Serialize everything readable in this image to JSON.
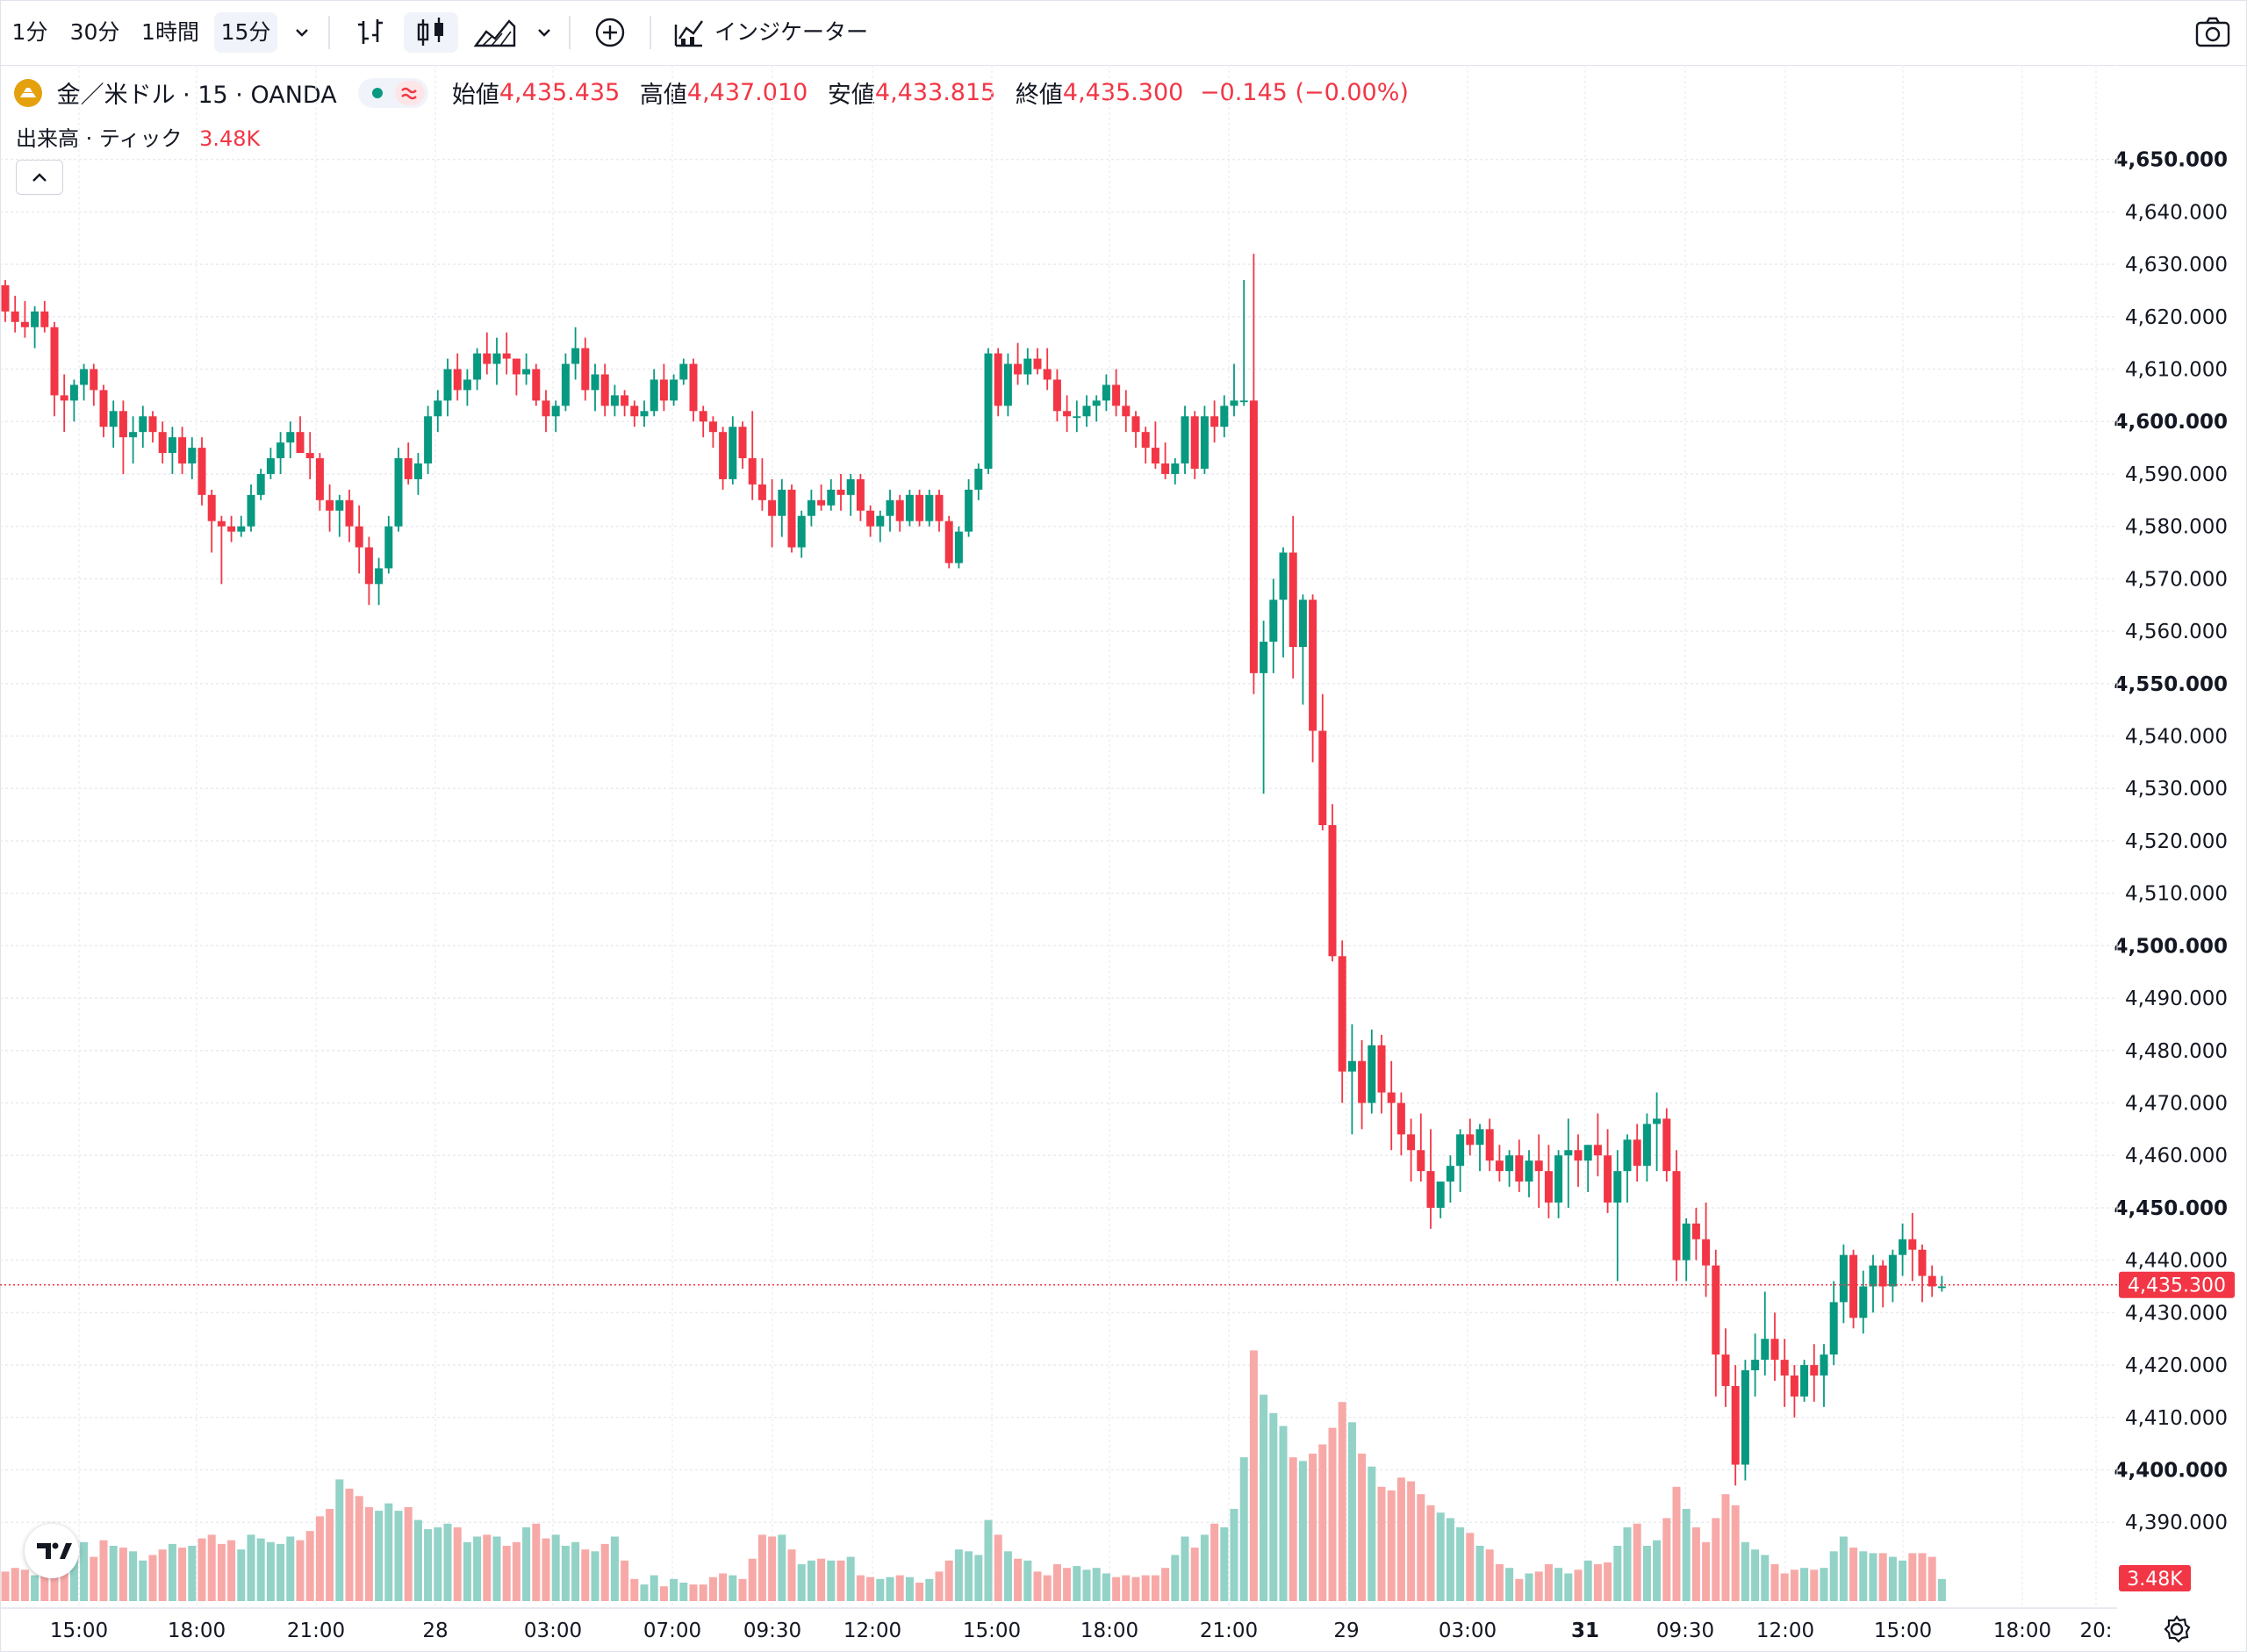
{
  "toolbar": {
    "intervals": [
      "1分",
      "30分",
      "1時間",
      "15分"
    ],
    "active_interval": "15分",
    "indicators_label": "インジケーター",
    "icons": [
      "chevron-down-icon",
      "bar-style-icon",
      "candles-icon",
      "area-icon",
      "chevron-down-icon",
      "plus-circle-icon",
      "indicators-icon",
      "camera-icon"
    ]
  },
  "legend": {
    "symbol": "金／米ドル · 15 · OANDA",
    "open_label": "始値",
    "open": "4,435.435",
    "high_label": "高値",
    "high": "4,437.010",
    "low_label": "安値",
    "low": "4,433.815",
    "close_label": "終値",
    "close": "4,435.300",
    "change": "−0.145 (−0.00%)"
  },
  "volume_legend": {
    "label": "出来高 · ティック",
    "value": "3.48K"
  },
  "price_tags": {
    "last_price": "4,435.300",
    "last_volume": "3.48K"
  },
  "colors": {
    "up": "#089981",
    "down": "#f23645",
    "vol_up": "#92d2c7",
    "vol_down": "#f7a9a7"
  },
  "chart_data": {
    "type": "candlestick",
    "symbol": "XAUUSD",
    "timeframe": "15",
    "ylim": [
      4382,
      4662
    ],
    "y_ticks": [
      4390,
      4400,
      4410,
      4420,
      4430,
      4440,
      4450,
      4460,
      4470,
      4480,
      4490,
      4500,
      4510,
      4520,
      4530,
      4540,
      4550,
      4560,
      4570,
      4580,
      4590,
      4600,
      4610,
      4620,
      4630,
      4640,
      4650
    ],
    "y_tick_labels": [
      "4,390.000",
      "4,400.000",
      "4,410.000",
      "4,420.000",
      "4,430.000",
      "4,440.000",
      "4,450.000",
      "4,460.000",
      "4,470.000",
      "4,480.000",
      "4,490.000",
      "4,500.000",
      "4,510.000",
      "4,520.000",
      "4,530.000",
      "4,540.000",
      "4,550.000",
      "4,560.000",
      "4,570.000",
      "4,580.000",
      "4,590.000",
      "4,600.000",
      "4,610.000",
      "4,620.000",
      "4,630.000",
      "4,640.000",
      "4,650.000"
    ],
    "y_bold_ticks": [
      4400,
      4450,
      4500,
      4550,
      4600,
      4650
    ],
    "x_ticks": [
      "15:00",
      "18:00",
      "21:00",
      "28",
      "03:00",
      "07:00",
      "09:30",
      "12:00",
      "15:00",
      "18:00",
      "21:00",
      "29",
      "03:00",
      "31",
      "09:30",
      "12:00",
      "15:00",
      "18:00",
      "20:"
    ],
    "x_bold_ticks": [
      "31"
    ],
    "last_price": 4435.3,
    "candles": [
      [
        4626,
        4627,
        4619,
        4621,
        16
      ],
      [
        4621,
        4624,
        4617,
        4619,
        18
      ],
      [
        4619,
        4623,
        4616,
        4618,
        17
      ],
      [
        4618,
        4622,
        4614,
        4621,
        14
      ],
      [
        4621,
        4623,
        4617,
        4618,
        19
      ],
      [
        4618,
        4619,
        4601,
        4605,
        30
      ],
      [
        4605,
        4609,
        4598,
        4604,
        25
      ],
      [
        4604,
        4608,
        4600,
        4607,
        28
      ],
      [
        4607,
        4611,
        4604,
        4610,
        32
      ],
      [
        4610,
        4611,
        4603,
        4606,
        24
      ],
      [
        4606,
        4607,
        4597,
        4599,
        33
      ],
      [
        4599,
        4604,
        4595,
        4602,
        30
      ],
      [
        4602,
        4604,
        4590,
        4597,
        29
      ],
      [
        4597,
        4601,
        4592,
        4598,
        27
      ],
      [
        4598,
        4603,
        4595,
        4601,
        22
      ],
      [
        4601,
        4602,
        4596,
        4598,
        25
      ],
      [
        4598,
        4600,
        4592,
        4594,
        28
      ],
      [
        4594,
        4599,
        4590,
        4597,
        31
      ],
      [
        4597,
        4599,
        4590,
        4592,
        29
      ],
      [
        4592,
        4597,
        4589,
        4595,
        30
      ],
      [
        4595,
        4597,
        4584,
        4586,
        34
      ],
      [
        4586,
        4587,
        4575,
        4581,
        36
      ],
      [
        4581,
        4582,
        4569,
        4580,
        31
      ],
      [
        4580,
        4582,
        4577,
        4579,
        33
      ],
      [
        4579,
        4582,
        4578,
        4580,
        28
      ],
      [
        4580,
        4588,
        4579,
        4586,
        36
      ],
      [
        4586,
        4591,
        4585,
        4590,
        34
      ],
      [
        4590,
        4595,
        4589,
        4593,
        32
      ],
      [
        4593,
        4598,
        4590,
        4596,
        31
      ],
      [
        4596,
        4600,
        4593,
        4598,
        35
      ],
      [
        4598,
        4601,
        4596,
        4594,
        33
      ],
      [
        4594,
        4598,
        4589,
        4593,
        38
      ],
      [
        4593,
        4594,
        4583,
        4585,
        46
      ],
      [
        4585,
        4588,
        4579,
        4583,
        50
      ],
      [
        4583,
        4586,
        4578,
        4585,
        66
      ],
      [
        4585,
        4587,
        4577,
        4580,
        61
      ],
      [
        4580,
        4584,
        4571,
        4576,
        57
      ],
      [
        4576,
        4578,
        4565,
        4569,
        51
      ],
      [
        4569,
        4574,
        4565,
        4572,
        49
      ],
      [
        4572,
        4582,
        4571,
        4580,
        53
      ],
      [
        4580,
        4595,
        4579,
        4593,
        49
      ],
      [
        4593,
        4596,
        4588,
        4589,
        51
      ],
      [
        4589,
        4594,
        4586,
        4592,
        44
      ],
      [
        4592,
        4603,
        4590,
        4601,
        39
      ],
      [
        4601,
        4606,
        4598,
        4604,
        40
      ],
      [
        4604,
        4612,
        4601,
        4610,
        42
      ],
      [
        4610,
        4613,
        4604,
        4606,
        40
      ],
      [
        4606,
        4610,
        4603,
        4608,
        32
      ],
      [
        4608,
        4614,
        4606,
        4613,
        35
      ],
      [
        4613,
        4617,
        4609,
        4611,
        36
      ],
      [
        4611,
        4616,
        4607,
        4613,
        35
      ],
      [
        4613,
        4617,
        4609,
        4612,
        30
      ],
      [
        4612,
        4612,
        4605,
        4609,
        32
      ],
      [
        4609,
        4613,
        4607,
        4610,
        40
      ],
      [
        4610,
        4611,
        4603,
        4604,
        42
      ],
      [
        4604,
        4606,
        4598,
        4601,
        34
      ],
      [
        4601,
        4604,
        4598,
        4603,
        36
      ],
      [
        4603,
        4613,
        4602,
        4611,
        30
      ],
      [
        4611,
        4618,
        4608,
        4614,
        32
      ],
      [
        4614,
        4616,
        4604,
        4606,
        28
      ],
      [
        4606,
        4611,
        4602,
        4609,
        27
      ],
      [
        4609,
        4611,
        4601,
        4603,
        31
      ],
      [
        4603,
        4607,
        4601,
        4605,
        35
      ],
      [
        4605,
        4606,
        4601,
        4603,
        22
      ],
      [
        4603,
        4604,
        4599,
        4601,
        12
      ],
      [
        4601,
        4604,
        4599,
        4602,
        9
      ],
      [
        4602,
        4610,
        4601,
        4608,
        14
      ],
      [
        4608,
        4611,
        4602,
        4604,
        8
      ],
      [
        4604,
        4609,
        4603,
        4608,
        12
      ],
      [
        4608,
        4612,
        4607,
        4611,
        10
      ],
      [
        4611,
        4612,
        4600,
        4602,
        9
      ],
      [
        4602,
        4603,
        4597,
        4600,
        9
      ],
      [
        4600,
        4601,
        4595,
        4598,
        13
      ],
      [
        4598,
        4599,
        4587,
        4589,
        15
      ],
      [
        4589,
        4601,
        4588,
        4599,
        14
      ],
      [
        4599,
        4600,
        4591,
        4593,
        12
      ],
      [
        4593,
        4602,
        4585,
        4588,
        23
      ],
      [
        4588,
        4593,
        4583,
        4585,
        36
      ],
      [
        4585,
        4589,
        4576,
        4582,
        35
      ],
      [
        4582,
        4589,
        4578,
        4587,
        36
      ],
      [
        4587,
        4588,
        4575,
        4576,
        28
      ],
      [
        4576,
        4583,
        4574,
        4582,
        20
      ],
      [
        4582,
        4587,
        4580,
        4585,
        22
      ],
      [
        4585,
        4588,
        4583,
        4584,
        23
      ],
      [
        4584,
        4589,
        4583,
        4587,
        22
      ],
      [
        4587,
        4590,
        4583,
        4586,
        22
      ],
      [
        4586,
        4590,
        4582,
        4589,
        24
      ],
      [
        4589,
        4590,
        4581,
        4583,
        14
      ],
      [
        4583,
        4584,
        4578,
        4580,
        13
      ],
      [
        4580,
        4583,
        4577,
        4582,
        12
      ],
      [
        4582,
        4587,
        4579,
        4585,
        13
      ],
      [
        4585,
        4586,
        4579,
        4581,
        14
      ],
      [
        4581,
        4587,
        4580,
        4586,
        13
      ],
      [
        4586,
        4587,
        4580,
        4581,
        10
      ],
      [
        4581,
        4587,
        4580,
        4586,
        12
      ],
      [
        4586,
        4587,
        4579,
        4581,
        16
      ],
      [
        4581,
        4582,
        4572,
        4573,
        22
      ],
      [
        4573,
        4580,
        4572,
        4579,
        28
      ],
      [
        4579,
        4589,
        4578,
        4587,
        27
      ],
      [
        4587,
        4592,
        4585,
        4591,
        25
      ],
      [
        4591,
        4614,
        4590,
        4613,
        44
      ],
      [
        4613,
        4614,
        4601,
        4603,
        36
      ],
      [
        4603,
        4613,
        4601,
        4611,
        27
      ],
      [
        4611,
        4615,
        4607,
        4609,
        23
      ],
      [
        4609,
        4614,
        4607,
        4612,
        22
      ],
      [
        4612,
        4614,
        4609,
        4610,
        16
      ],
      [
        4610,
        4614,
        4606,
        4608,
        14
      ],
      [
        4608,
        4610,
        4600,
        4602,
        20
      ],
      [
        4602,
        4605,
        4598,
        4601,
        18
      ],
      [
        4601,
        4604,
        4598,
        4601,
        19
      ],
      [
        4601,
        4605,
        4599,
        4603,
        17
      ],
      [
        4603,
        4605,
        4600,
        4604,
        18
      ],
      [
        4604,
        4609,
        4602,
        4607,
        15
      ],
      [
        4607,
        4610,
        4601,
        4603,
        13
      ],
      [
        4603,
        4606,
        4598,
        4601,
        14
      ],
      [
        4601,
        4602,
        4595,
        4598,
        13
      ],
      [
        4598,
        4599,
        4592,
        4595,
        14
      ],
      [
        4595,
        4600,
        4591,
        4592,
        14
      ],
      [
        4592,
        4596,
        4589,
        4590,
        18
      ],
      [
        4590,
        4593,
        4588,
        4592,
        25
      ],
      [
        4592,
        4603,
        4590,
        4601,
        35
      ],
      [
        4601,
        4602,
        4589,
        4591,
        29
      ],
      [
        4591,
        4603,
        4590,
        4601,
        36
      ],
      [
        4601,
        4604,
        4596,
        4599,
        42
      ],
      [
        4599,
        4605,
        4597,
        4603,
        40
      ],
      [
        4603,
        4611,
        4601,
        4604,
        50
      ],
      [
        4604,
        4627,
        4603,
        4604,
        78
      ],
      [
        4604,
        4632,
        4548,
        4552,
        136
      ],
      [
        4552,
        4562,
        4529,
        4558,
        112
      ],
      [
        4558,
        4570,
        4552,
        4566,
        102
      ],
      [
        4566,
        4576,
        4555,
        4575,
        95
      ],
      [
        4575,
        4582,
        4551,
        4557,
        78
      ],
      [
        4557,
        4567,
        4546,
        4566,
        76
      ],
      [
        4566,
        4567,
        4535,
        4541,
        80
      ],
      [
        4541,
        4548,
        4522,
        4523,
        85
      ],
      [
        4523,
        4527,
        4497,
        4498,
        94
      ],
      [
        4498,
        4501,
        4470,
        4476,
        108
      ],
      [
        4476,
        4485,
        4464,
        4478,
        97
      ],
      [
        4478,
        4482,
        4465,
        4470,
        80
      ],
      [
        4470,
        4484,
        4468,
        4481,
        73
      ],
      [
        4481,
        4483,
        4468,
        4472,
        62
      ],
      [
        4472,
        4478,
        4461,
        4470,
        60
      ],
      [
        4470,
        4472,
        4460,
        4464,
        67
      ],
      [
        4464,
        4467,
        4455,
        4461,
        65
      ],
      [
        4461,
        4468,
        4455,
        4457,
        58
      ],
      [
        4457,
        4465,
        4446,
        4450,
        52
      ],
      [
        4450,
        4455,
        4448,
        4455,
        48
      ],
      [
        4455,
        4460,
        4451,
        4458,
        45
      ],
      [
        4458,
        4465,
        4453,
        4464,
        40
      ],
      [
        4464,
        4467,
        4460,
        4462,
        37
      ],
      [
        4462,
        4466,
        4457,
        4465,
        30
      ],
      [
        4465,
        4467,
        4457,
        4459,
        28
      ],
      [
        4459,
        4462,
        4455,
        4457,
        20
      ],
      [
        4457,
        4461,
        4454,
        4460,
        18
      ],
      [
        4460,
        4463,
        4453,
        4455,
        12
      ],
      [
        4455,
        4461,
        4452,
        4459,
        15
      ],
      [
        4459,
        4464,
        4450,
        4457,
        16
      ],
      [
        4457,
        4462,
        4448,
        4451,
        20
      ],
      [
        4451,
        4461,
        4448,
        4460,
        18
      ],
      [
        4460,
        4467,
        4450,
        4461,
        15
      ],
      [
        4461,
        4464,
        4454,
        4459,
        17
      ],
      [
        4459,
        4462,
        4453,
        4462,
        22
      ],
      [
        4462,
        4468,
        4456,
        4460,
        20
      ],
      [
        4460,
        4465,
        4449,
        4451,
        21
      ],
      [
        4451,
        4461,
        4436,
        4457,
        30
      ],
      [
        4457,
        4464,
        4451,
        4463,
        40
      ],
      [
        4463,
        4466,
        4455,
        4458,
        42
      ],
      [
        4458,
        4468,
        4455,
        4466,
        30
      ],
      [
        4466,
        4472,
        4457,
        4467,
        33
      ],
      [
        4467,
        4469,
        4455,
        4457,
        45
      ],
      [
        4457,
        4461,
        4436,
        4440,
        62
      ],
      [
        4440,
        4448,
        4436,
        4447,
        50
      ],
      [
        4447,
        4450,
        4440,
        4444,
        40
      ],
      [
        4444,
        4451,
        4433,
        4439,
        32
      ],
      [
        4439,
        4442,
        4414,
        4422,
        45
      ],
      [
        4422,
        4427,
        4412,
        4416,
        58
      ],
      [
        4416,
        4420,
        4397,
        4401,
        52
      ],
      [
        4401,
        4421,
        4398,
        4419,
        32
      ],
      [
        4419,
        4426,
        4414,
        4421,
        28
      ],
      [
        4421,
        4434,
        4418,
        4425,
        25
      ],
      [
        4425,
        4430,
        4417,
        4421,
        20
      ],
      [
        4421,
        4425,
        4412,
        4418,
        15
      ],
      [
        4418,
        4420,
        4410,
        4414,
        17
      ],
      [
        4414,
        4421,
        4413,
        4420,
        18
      ],
      [
        4420,
        4424,
        4413,
        4418,
        17
      ],
      [
        4418,
        4424,
        4412,
        4422,
        18
      ],
      [
        4422,
        4436,
        4420,
        4432,
        27
      ],
      [
        4432,
        4443,
        4428,
        4441,
        35
      ],
      [
        4441,
        4442,
        4427,
        4429,
        29
      ],
      [
        4429,
        4438,
        4426,
        4435,
        27
      ],
      [
        4435,
        4441,
        4430,
        4439,
        26
      ],
      [
        4439,
        4440,
        4431,
        4435,
        26
      ],
      [
        4435,
        4442,
        4432,
        4441,
        24
      ],
      [
        4441,
        4447,
        4437,
        4444,
        22
      ],
      [
        4444,
        4449,
        4436,
        4442,
        26
      ],
      [
        4442,
        4443,
        4432,
        4437,
        26
      ],
      [
        4437,
        4439,
        4433,
        4435,
        24
      ],
      [
        4435,
        4437,
        4434,
        4435,
        12
      ]
    ]
  }
}
